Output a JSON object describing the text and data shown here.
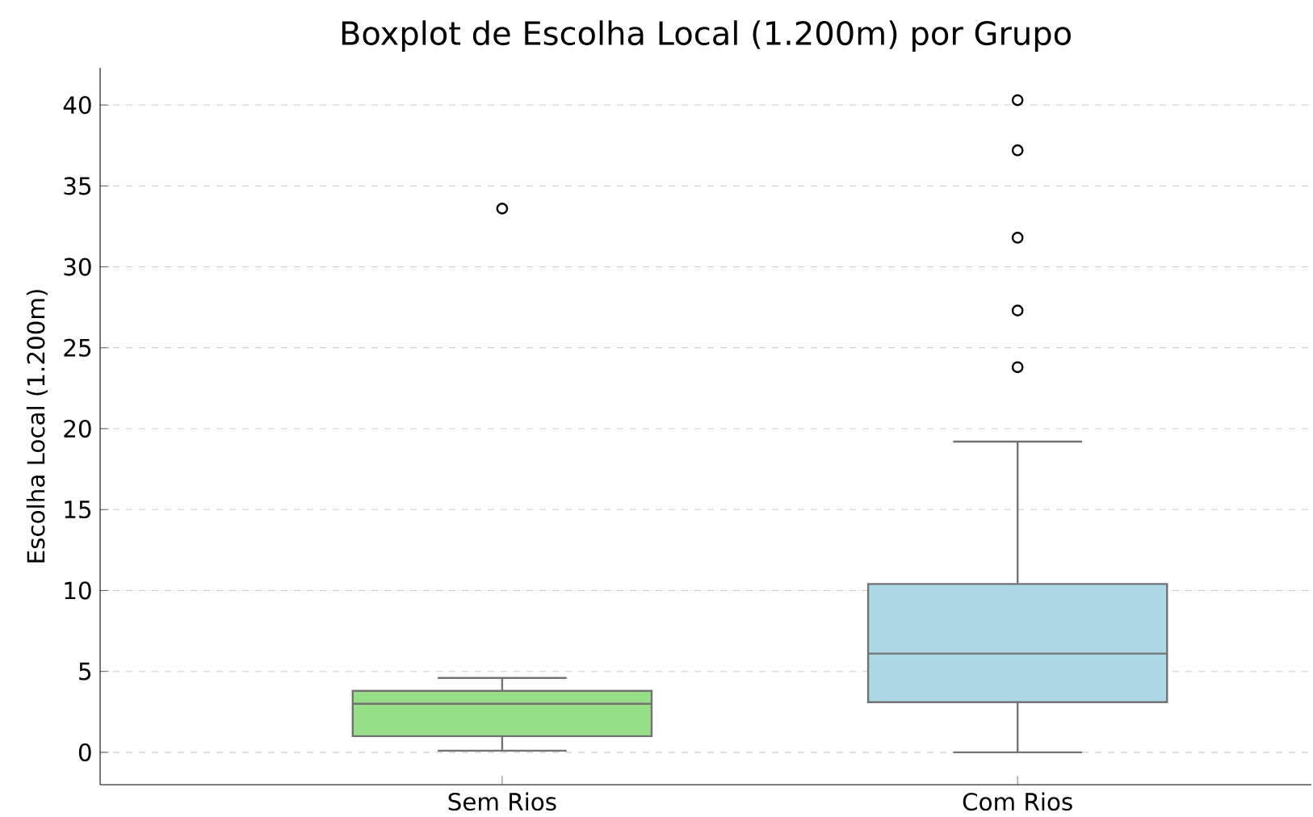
{
  "chart_data": {
    "type": "box",
    "title": "Boxplot de Escolha Local (1.200m) por Grupo",
    "ylabel": "Escolha Local (1.200m)",
    "categories": [
      "Sem Rios",
      "Com Rios"
    ],
    "boxes": [
      {
        "low": 0.1,
        "q1": 1.0,
        "median": 3.0,
        "q3": 3.8,
        "high": 4.6,
        "outliers": [
          33.6
        ]
      },
      {
        "low": 0.0,
        "q1": 3.1,
        "median": 6.1,
        "q3": 10.4,
        "high": 19.2,
        "outliers": [
          23.8,
          27.3,
          31.8,
          37.2,
          40.3
        ]
      }
    ],
    "colors": [
      "#98df8a",
      "#add8e6"
    ],
    "ylim": [
      -2,
      42.3
    ],
    "yticks": [
      0,
      5,
      10,
      15,
      20,
      25,
      30,
      35,
      40
    ],
    "grid": "y"
  }
}
